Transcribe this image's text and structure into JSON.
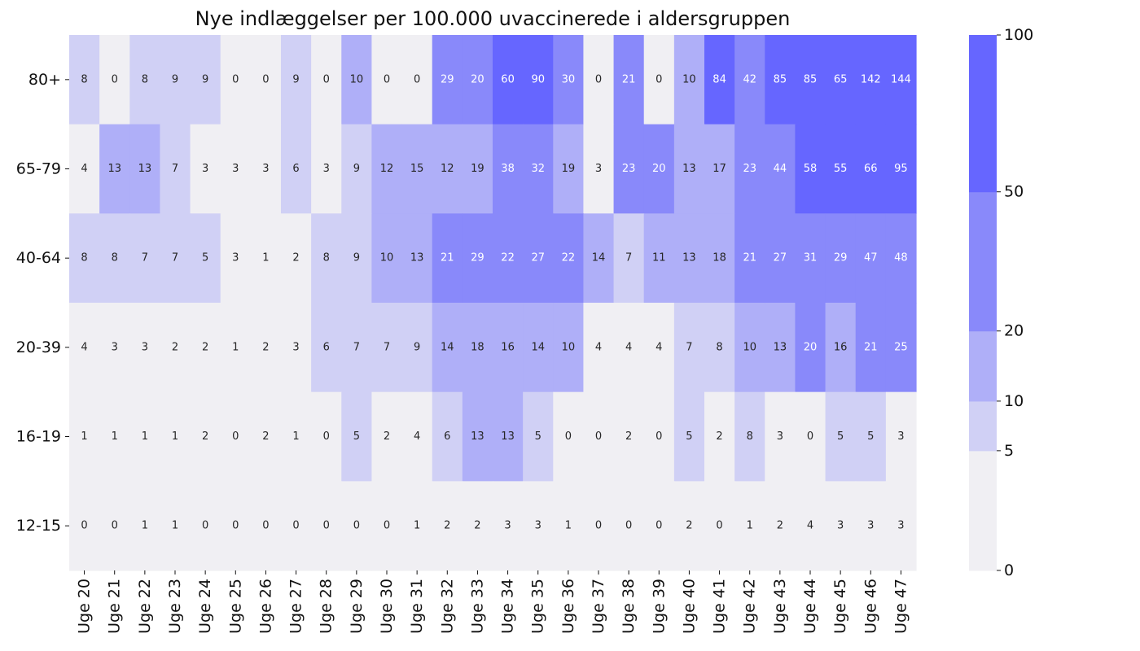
{
  "chart_data": {
    "type": "heatmap",
    "title": "Nye indlæggelser per 100.000 uvaccinerede i aldersgruppen",
    "x_categories": [
      "Uge 20",
      "Uge 21",
      "Uge 22",
      "Uge 23",
      "Uge 24",
      "Uge 25",
      "Uge 26",
      "Uge 27",
      "Uge 28",
      "Uge 29",
      "Uge 30",
      "Uge 31",
      "Uge 32",
      "Uge 33",
      "Uge 34",
      "Uge 35",
      "Uge 36",
      "Uge 37",
      "Uge 38",
      "Uge 39",
      "Uge 40",
      "Uge 41",
      "Uge 42",
      "Uge 43",
      "Uge 44",
      "Uge 45",
      "Uge 46",
      "Uge 47"
    ],
    "y_categories": [
      "80+",
      "65-79",
      "40-64",
      "20-39",
      "16-19",
      "12-15"
    ],
    "values": [
      [
        8,
        0,
        8,
        9,
        9,
        0,
        0,
        9,
        0,
        10,
        0,
        0,
        29,
        20,
        60,
        90,
        30,
        0,
        21,
        0,
        10,
        84,
        42,
        85,
        85,
        65,
        142,
        144
      ],
      [
        4,
        13,
        13,
        7,
        3,
        3,
        3,
        6,
        3,
        9,
        12,
        15,
        12,
        19,
        38,
        32,
        19,
        3,
        23,
        20,
        13,
        17,
        23,
        44,
        58,
        55,
        66,
        95
      ],
      [
        8,
        8,
        7,
        7,
        5,
        3,
        1,
        2,
        8,
        9,
        10,
        13,
        21,
        29,
        22,
        27,
        22,
        14,
        7,
        11,
        13,
        18,
        21,
        27,
        31,
        29,
        47,
        48
      ],
      [
        4,
        3,
        3,
        2,
        2,
        1,
        2,
        3,
        6,
        7,
        7,
        9,
        14,
        18,
        16,
        14,
        10,
        4,
        4,
        4,
        7,
        8,
        10,
        13,
        20,
        16,
        21,
        25
      ],
      [
        1,
        1,
        1,
        1,
        2,
        0,
        2,
        1,
        0,
        5,
        2,
        4,
        6,
        13,
        13,
        5,
        0,
        0,
        2,
        0,
        5,
        2,
        8,
        3,
        0,
        5,
        5,
        3
      ],
      [
        0,
        0,
        1,
        1,
        0,
        0,
        0,
        0,
        0,
        0,
        0,
        1,
        2,
        2,
        3,
        3,
        1,
        0,
        0,
        0,
        2,
        0,
        1,
        2,
        4,
        3,
        3,
        3
      ]
    ],
    "colorbar": {
      "bins": [
        0,
        5,
        10,
        20,
        50,
        100
      ],
      "tick_labels": [
        "0",
        "5",
        "10",
        "20",
        "50",
        "100"
      ],
      "colors": [
        "#f0eff3",
        "#d0d0f5",
        "#afaff8",
        "#8989fa",
        "#6666ff"
      ]
    },
    "label_colors": {
      "dark": "#262626",
      "light": "#ffffff"
    }
  }
}
